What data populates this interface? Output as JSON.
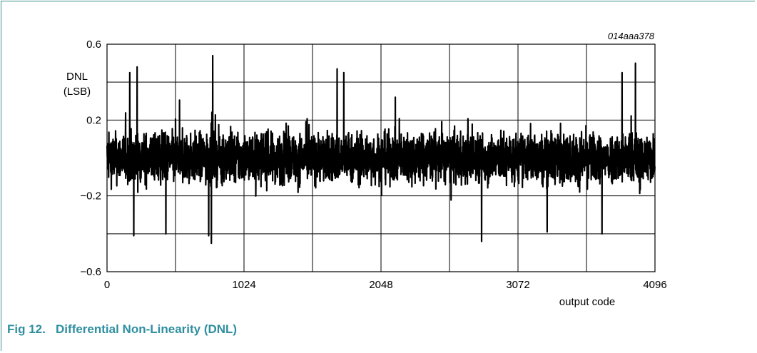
{
  "figure": {
    "caption_number": "Fig 12.",
    "caption_title": "Differential Non-Linearity (DNL)",
    "reference_code": "014aaa378"
  },
  "chart_data": {
    "type": "line",
    "xlabel": "output code",
    "ylabel_line1": "DNL",
    "ylabel_line2": "(LSB)",
    "xlim": [
      0,
      4096
    ],
    "ylim": [
      -0.6,
      0.6
    ],
    "grid": true,
    "x_ticks": [
      0,
      1024,
      2048,
      3072,
      4096
    ],
    "x_tick_labels": [
      "0",
      "1024",
      "2048",
      "3072",
      "4096"
    ],
    "y_ticks": [
      -0.6,
      -0.2,
      0.2,
      0.6
    ],
    "y_tick_labels": [
      "−0.6",
      "−0.2",
      "0.2",
      "0.6"
    ],
    "y_gridlines": [
      -0.6,
      -0.4,
      -0.2,
      0,
      0.2,
      0.4,
      0.6
    ],
    "x_gridlines": [
      0,
      512,
      1024,
      1536,
      2048,
      2560,
      3072,
      3584,
      4096
    ],
    "series": [
      {
        "color": "#000000",
        "description_stats": {
          "points": 4096,
          "typical_range": [
            -0.3,
            0.3
          ]
        },
        "peaks": [
          {
            "x": 170,
            "y": 0.45
          },
          {
            "x": 225,
            "y": 0.48
          },
          {
            "x": 790,
            "y": 0.54
          },
          {
            "x": 1720,
            "y": 0.47
          },
          {
            "x": 1770,
            "y": 0.45
          },
          {
            "x": 3850,
            "y": 0.45
          },
          {
            "x": 3950,
            "y": 0.5
          }
        ],
        "troughs": [
          {
            "x": 200,
            "y": -0.41
          },
          {
            "x": 440,
            "y": -0.4
          },
          {
            "x": 760,
            "y": -0.41
          },
          {
            "x": 780,
            "y": -0.45
          },
          {
            "x": 2800,
            "y": -0.44
          },
          {
            "x": 3290,
            "y": -0.39
          },
          {
            "x": 3700,
            "y": -0.4
          }
        ]
      }
    ]
  }
}
